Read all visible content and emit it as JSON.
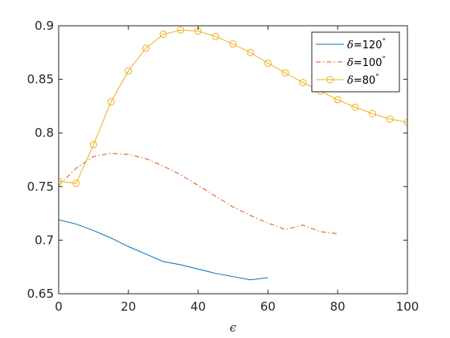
{
  "chart_data": {
    "type": "line",
    "title": "",
    "xlabel": "ϵ",
    "ylabel": "",
    "xlim": [
      0,
      100
    ],
    "ylim": [
      0.65,
      0.9
    ],
    "xticks": [
      0,
      20,
      40,
      60,
      80,
      100
    ],
    "yticks": [
      0.65,
      0.7,
      0.75,
      0.8,
      0.85,
      0.9
    ],
    "xtick_labels": [
      "0",
      "20",
      "40",
      "60",
      "80",
      "100"
    ],
    "ytick_labels": [
      "0.65",
      "0.7",
      "0.75",
      "0.8",
      "0.85",
      "0.9"
    ],
    "grid": false,
    "legend_position": "top-right",
    "series": [
      {
        "name_prefix": "δ",
        "name_value": "=120",
        "name_suffix": "°",
        "color": "#0072bd",
        "style": "solid",
        "marker": "none",
        "x": [
          0,
          5,
          10,
          15,
          20,
          25,
          30,
          35,
          40,
          45,
          50,
          55,
          60
        ],
        "y": [
          0.719,
          0.715,
          0.709,
          0.702,
          0.694,
          0.687,
          0.68,
          0.677,
          0.673,
          0.669,
          0.666,
          0.663,
          0.665
        ]
      },
      {
        "name_prefix": "δ",
        "name_value": "=100",
        "name_suffix": "°",
        "color": "#d95319",
        "style": "dashdot",
        "marker": "none",
        "x": [
          0,
          5,
          10,
          15,
          20,
          25,
          30,
          35,
          40,
          45,
          50,
          55,
          60,
          65,
          70,
          75,
          80
        ],
        "y": [
          0.751,
          0.767,
          0.778,
          0.781,
          0.78,
          0.776,
          0.769,
          0.761,
          0.751,
          0.741,
          0.731,
          0.723,
          0.716,
          0.71,
          0.714,
          0.708,
          0.706
        ]
      },
      {
        "name_prefix": "δ",
        "name_value": "=80",
        "name_suffix": "°",
        "color": "#edb120",
        "style": "solid",
        "marker": "circle",
        "x": [
          0,
          5,
          10,
          15,
          20,
          25,
          30,
          35,
          40,
          45,
          50,
          55,
          60,
          65,
          70,
          75,
          80,
          85,
          90,
          95,
          100
        ],
        "y": [
          0.755,
          0.753,
          0.789,
          0.829,
          0.858,
          0.879,
          0.892,
          0.896,
          0.895,
          0.89,
          0.883,
          0.875,
          0.865,
          0.856,
          0.847,
          0.839,
          0.831,
          0.824,
          0.818,
          0.813,
          0.81
        ]
      }
    ]
  }
}
